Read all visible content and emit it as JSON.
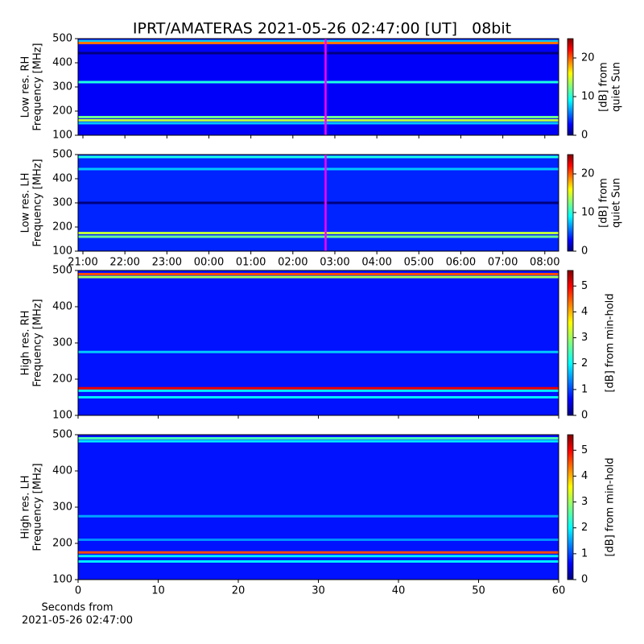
{
  "title": "IPRT/AMATERAS 2021-05-26 02:47:00 [UT]   08bit",
  "chart_data": [
    {
      "type": "heatmap",
      "ylabel": [
        "Low res. RH",
        "Frequency [MHz]"
      ],
      "ylim": [
        100,
        500
      ],
      "yticks": [
        100,
        200,
        300,
        400,
        500
      ],
      "xlim": [
        20.885,
        32.33
      ],
      "xticks": [
        {
          "value": 21,
          "label": "21:00"
        },
        {
          "value": 22,
          "label": "22:00"
        },
        {
          "value": 23,
          "label": "23:00"
        },
        {
          "value": 24,
          "label": "00:00"
        },
        {
          "value": 25,
          "label": "01:00"
        },
        {
          "value": 26,
          "label": "02:00"
        },
        {
          "value": 27,
          "label": "03:00"
        },
        {
          "value": 28,
          "label": "04:00"
        },
        {
          "value": 29,
          "label": "05:00"
        },
        {
          "value": 30,
          "label": "06:00"
        },
        {
          "value": 31,
          "label": "07:00"
        },
        {
          "value": 32,
          "label": "08:00"
        }
      ],
      "xticklabels": false,
      "marker_x": 26.78,
      "marker_color": "#ff00ff",
      "clim": [
        0,
        25
      ],
      "cticks": [
        0,
        10,
        20
      ],
      "clabel": [
        "[dB] from",
        "quiet Sun"
      ],
      "background": 3,
      "bands": [
        {
          "freq": 490,
          "level": 8
        },
        {
          "freq": 482,
          "level": 19
        },
        {
          "freq": 440,
          "level": 0
        },
        {
          "freq": 320,
          "level": 10
        },
        {
          "freq": 175,
          "level": 12
        },
        {
          "freq": 162,
          "level": 14
        },
        {
          "freq": 150,
          "level": 8
        }
      ]
    },
    {
      "type": "heatmap",
      "ylabel": [
        "Low res. LH",
        "Frequency [MHz]"
      ],
      "ylim": [
        100,
        500
      ],
      "yticks": [
        100,
        200,
        300,
        400,
        500
      ],
      "xlim": [
        20.885,
        32.33
      ],
      "xticks": [
        {
          "value": 21,
          "label": "21:00"
        },
        {
          "value": 22,
          "label": "22:00"
        },
        {
          "value": 23,
          "label": "23:00"
        },
        {
          "value": 24,
          "label": "00:00"
        },
        {
          "value": 25,
          "label": "01:00"
        },
        {
          "value": 26,
          "label": "02:00"
        },
        {
          "value": 27,
          "label": "03:00"
        },
        {
          "value": 28,
          "label": "04:00"
        },
        {
          "value": 29,
          "label": "05:00"
        },
        {
          "value": 30,
          "label": "06:00"
        },
        {
          "value": 31,
          "label": "07:00"
        },
        {
          "value": 32,
          "label": "08:00"
        }
      ],
      "xticklabels": true,
      "marker_x": 26.78,
      "marker_color": "#ff00ff",
      "clim": [
        0,
        25
      ],
      "cticks": [
        0,
        10,
        20
      ],
      "clabel": [
        "[dB] from",
        "quiet Sun"
      ],
      "background": 4,
      "bands": [
        {
          "freq": 490,
          "level": 10
        },
        {
          "freq": 440,
          "level": 8
        },
        {
          "freq": 300,
          "level": 0
        },
        {
          "freq": 175,
          "level": 14
        },
        {
          "freq": 160,
          "level": 12
        }
      ]
    },
    {
      "type": "heatmap",
      "ylabel": [
        "High res. RH",
        "Frequency [MHz]"
      ],
      "ylim": [
        100,
        500
      ],
      "yticks": [
        100,
        200,
        300,
        400,
        500
      ],
      "xlim": [
        0,
        60
      ],
      "xticks": [
        0,
        10,
        20,
        30,
        40,
        50,
        60
      ],
      "xticklabels": false,
      "clim": [
        0,
        5.6
      ],
      "cticks": [
        0,
        1,
        2,
        3,
        4,
        5
      ],
      "clabel": [
        "[dB] from min-hold"
      ],
      "background": 0.8,
      "bands": [
        {
          "freq": 490,
          "level": 4.5
        },
        {
          "freq": 482,
          "level": 3
        },
        {
          "freq": 275,
          "level": 1.8
        },
        {
          "freq": 175,
          "level": 5
        },
        {
          "freq": 168,
          "level": 2
        },
        {
          "freq": 150,
          "level": 2
        }
      ]
    },
    {
      "type": "heatmap",
      "ylabel": [
        "High res. LH",
        "Frequency [MHz]"
      ],
      "ylim": [
        100,
        500
      ],
      "yticks": [
        100,
        200,
        300,
        400,
        500
      ],
      "xlim": [
        0,
        60
      ],
      "xticks": [
        0,
        10,
        20,
        30,
        40,
        50,
        60
      ],
      "xticklabels": true,
      "xlabel": [
        "Seconds from",
        "2021-05-26 02:47:00"
      ],
      "clim": [
        0,
        5.6
      ],
      "cticks": [
        0,
        1,
        2,
        3,
        4,
        5
      ],
      "clabel": [
        "[dB] from min-hold"
      ],
      "background": 0.8,
      "bands": [
        {
          "freq": 490,
          "level": 2.5
        },
        {
          "freq": 482,
          "level": 2
        },
        {
          "freq": 275,
          "level": 1.6
        },
        {
          "freq": 210,
          "level": 1.5
        },
        {
          "freq": 175,
          "level": 4.5
        },
        {
          "freq": 165,
          "level": 2
        },
        {
          "freq": 150,
          "level": 2
        }
      ]
    }
  ]
}
